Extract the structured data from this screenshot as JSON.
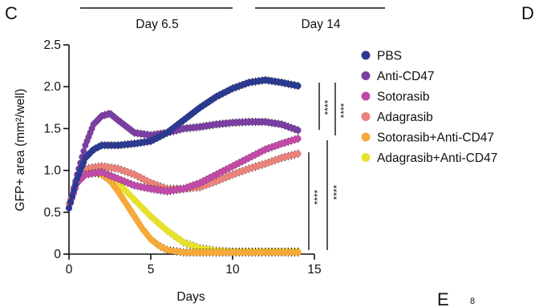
{
  "panel_labels": {
    "left": "C",
    "right": "D",
    "bottom": "E",
    "bottom_small": "8"
  },
  "day_labels": [
    "Day 6.5",
    "Day 14"
  ],
  "chart_data": {
    "type": "line",
    "title": "",
    "xlabel": "Days",
    "ylabel": "GFP+ area (mm²/well)",
    "xlim": [
      0,
      15
    ],
    "ylim": [
      0,
      2.5
    ],
    "x_ticks": [
      0,
      5,
      10,
      15
    ],
    "y_ticks": [
      0,
      0.5,
      1.0,
      1.5,
      2.0,
      2.5
    ],
    "x_tick_labels": [
      "0",
      "5",
      "10",
      "15"
    ],
    "y_tick_labels": [
      "0",
      "0.5",
      "1.0",
      "1.5",
      "2.0",
      "2.5"
    ],
    "legend_position": "right",
    "significance": [
      "****",
      "****",
      "****",
      "****"
    ],
    "series": [
      {
        "name": "PBS",
        "color": "#2b3a8f",
        "x": [
          0,
          0.5,
          1,
          1.5,
          2,
          3,
          4,
          5,
          6,
          7,
          8,
          9,
          10,
          11,
          12,
          13,
          14
        ],
        "y": [
          0.55,
          0.9,
          1.15,
          1.25,
          1.3,
          1.3,
          1.32,
          1.35,
          1.45,
          1.6,
          1.75,
          1.88,
          1.98,
          2.05,
          2.08,
          2.05,
          2.01
        ]
      },
      {
        "name": "Anti-CD47",
        "color": "#7a3fa0",
        "x": [
          0,
          0.5,
          1,
          1.5,
          2,
          2.5,
          3,
          4,
          5,
          6,
          7,
          8,
          9,
          10,
          11,
          12,
          13,
          14
        ],
        "y": [
          0.55,
          0.95,
          1.3,
          1.55,
          1.65,
          1.68,
          1.6,
          1.45,
          1.42,
          1.45,
          1.5,
          1.52,
          1.55,
          1.57,
          1.58,
          1.58,
          1.55,
          1.48
        ]
      },
      {
        "name": "Sotorasib",
        "color": "#c04aa6",
        "x": [
          0,
          0.5,
          1,
          2,
          3,
          4,
          5,
          6,
          7,
          8,
          9,
          10,
          11,
          12,
          13,
          14
        ],
        "y": [
          0.55,
          0.85,
          0.95,
          0.98,
          0.9,
          0.82,
          0.78,
          0.75,
          0.78,
          0.85,
          0.95,
          1.05,
          1.15,
          1.25,
          1.32,
          1.38
        ]
      },
      {
        "name": "Adagrasib",
        "color": "#e8827a",
        "x": [
          0,
          0.5,
          1,
          2,
          3,
          4,
          5,
          6,
          7,
          8,
          9,
          10,
          11,
          12,
          13,
          14
        ],
        "y": [
          0.6,
          0.9,
          1.02,
          1.05,
          1.02,
          0.95,
          0.85,
          0.78,
          0.78,
          0.8,
          0.87,
          0.95,
          1.02,
          1.08,
          1.15,
          1.2
        ]
      },
      {
        "name": "Sotorasib+Anti-CD47",
        "color": "#f5a93a",
        "x": [
          0,
          0.5,
          1,
          1.5,
          2,
          2.5,
          3,
          3.5,
          4,
          4.5,
          5,
          5.5,
          6,
          7,
          8,
          9,
          10,
          11,
          12,
          13,
          14
        ],
        "y": [
          0.6,
          0.85,
          0.95,
          0.98,
          0.95,
          0.88,
          0.75,
          0.6,
          0.45,
          0.3,
          0.18,
          0.1,
          0.05,
          0.02,
          0.02,
          0.02,
          0.02,
          0.02,
          0.02,
          0.02,
          0.02
        ]
      },
      {
        "name": "Adagrasib+Anti-CD47",
        "color": "#e6e12f",
        "x": [
          0,
          0.5,
          1,
          1.5,
          2,
          2.5,
          3,
          4,
          5,
          6,
          7,
          8,
          9,
          10,
          11,
          12,
          13,
          14
        ],
        "y": [
          0.6,
          0.88,
          0.98,
          1.0,
          0.98,
          0.92,
          0.85,
          0.65,
          0.45,
          0.28,
          0.14,
          0.07,
          0.04,
          0.03,
          0.03,
          0.03,
          0.03,
          0.03
        ]
      }
    ]
  }
}
